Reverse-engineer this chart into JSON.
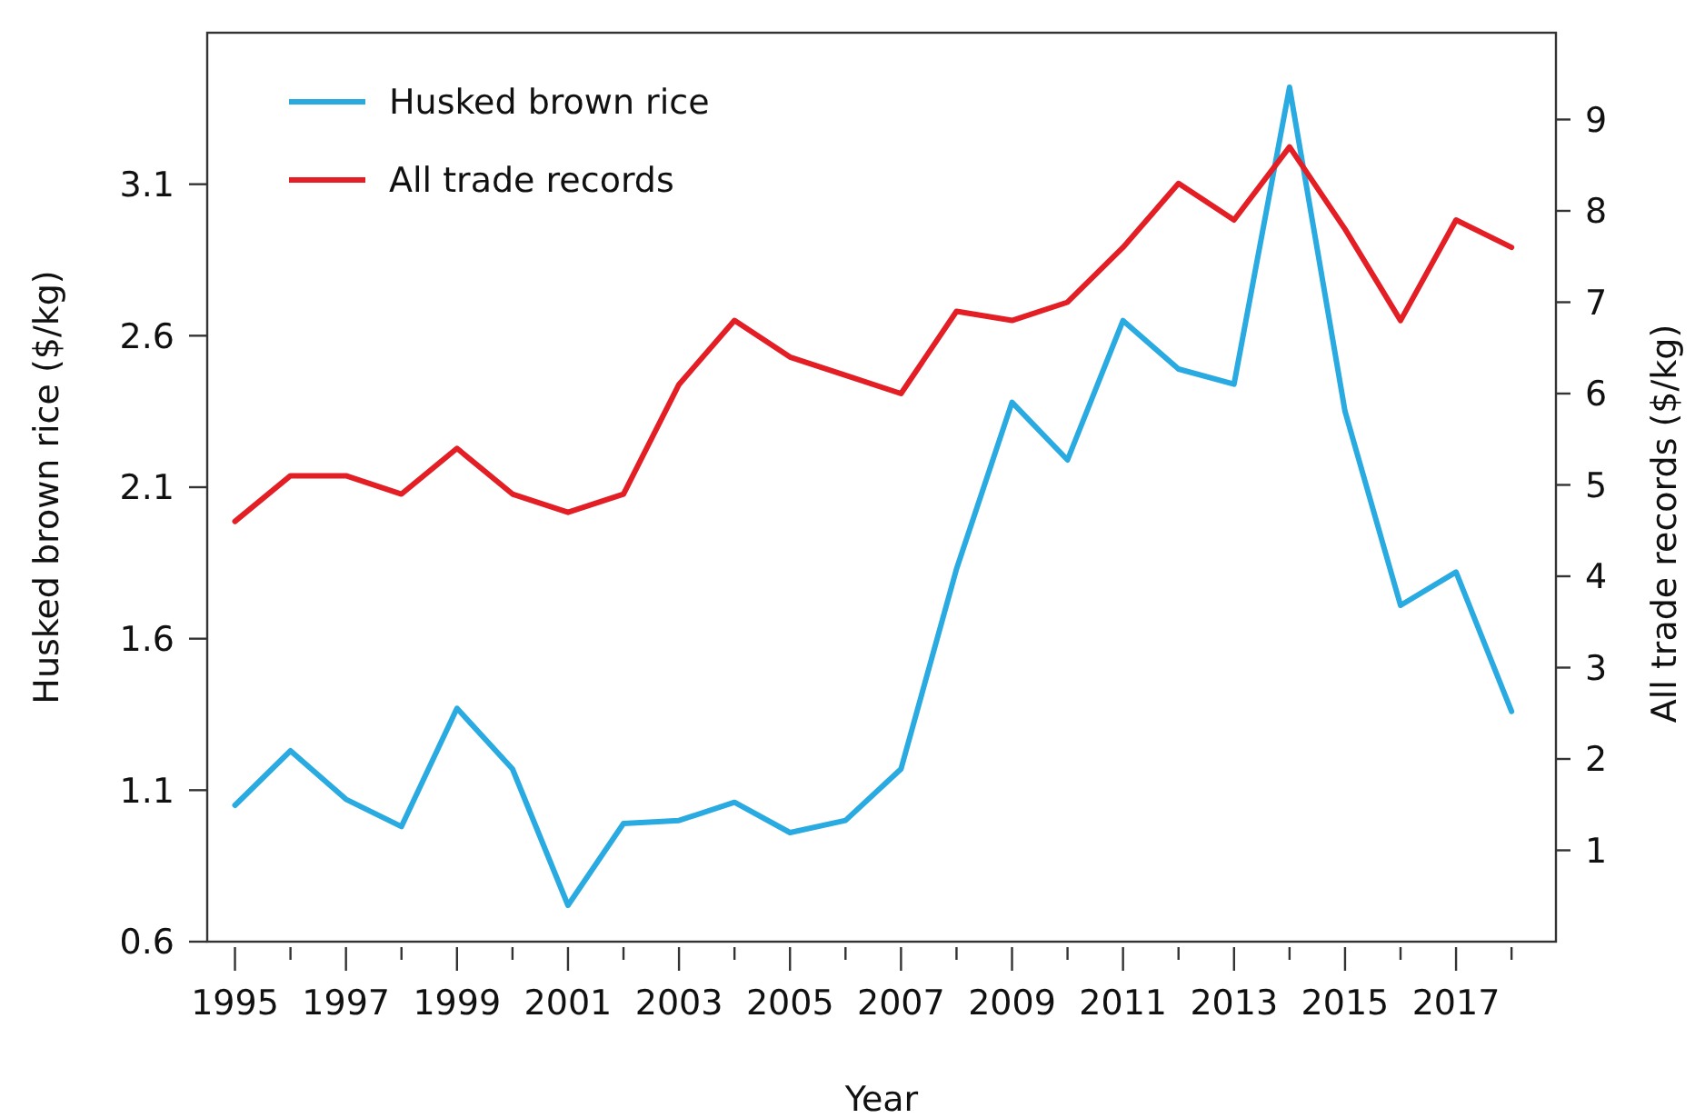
{
  "chart_data": {
    "type": "line",
    "xlabel": "Year",
    "ylabel": "Husked brown rice ($/kg)",
    "y2label": "All trade records  ($/kg)",
    "x": [
      1995,
      1996,
      1997,
      1998,
      1999,
      2000,
      2001,
      2002,
      2003,
      2004,
      2005,
      2006,
      2007,
      2008,
      2009,
      2010,
      2011,
      2012,
      2013,
      2014,
      2015,
      2016,
      2017,
      2018
    ],
    "series": [
      {
        "name": "Husked brown rice",
        "color": "#29abe2",
        "values": [
          1.05,
          1.23,
          1.07,
          0.98,
          1.37,
          1.17,
          0.72,
          0.99,
          1.0,
          1.06,
          0.96,
          1.0,
          1.17,
          1.83,
          2.38,
          2.19,
          2.65,
          2.49,
          2.44,
          3.42,
          2.35,
          1.71,
          1.82,
          1.36
        ]
      },
      {
        "name": "All trade records",
        "color": "#e31e24",
        "axis": "y2",
        "values": [
          4.6,
          5.1,
          5.1,
          4.9,
          5.4,
          4.9,
          4.7,
          4.9,
          6.1,
          6.8,
          6.4,
          6.2,
          6.0,
          6.9,
          6.8,
          7.0,
          7.6,
          8.3,
          7.9,
          8.7,
          7.8,
          6.8,
          7.9,
          7.6
        ]
      }
    ],
    "xlim": [
      1994.5,
      2018.8
    ],
    "xticks": [
      1995,
      {
        "value": 1996,
        "label": null
      },
      1997,
      {
        "value": 1998,
        "label": null
      },
      1999,
      {
        "value": 2000,
        "label": null
      },
      2001,
      {
        "value": 2002,
        "label": null
      },
      2003,
      {
        "value": 2004,
        "label": null
      },
      2005,
      {
        "value": 2006,
        "label": null
      },
      2007,
      {
        "value": 2008,
        "label": null
      },
      2009,
      {
        "value": 2010,
        "label": null
      },
      2011,
      {
        "value": 2012,
        "label": null
      },
      2013,
      {
        "value": 2014,
        "label": null
      },
      2015,
      {
        "value": 2016,
        "label": null
      },
      2017,
      {
        "value": 2018,
        "label": null
      }
    ],
    "ylim": [
      0.6,
      3.6
    ],
    "yticks": [
      0.6,
      1.1,
      1.6,
      2.1,
      2.6,
      3.1
    ],
    "y2lim": [
      0,
      9.95
    ],
    "y2ticks": [
      1,
      2,
      3,
      4,
      5,
      6,
      7,
      8,
      9
    ],
    "grid": false,
    "legend": "top left",
    "marker": "none",
    "line_style": "solid"
  }
}
